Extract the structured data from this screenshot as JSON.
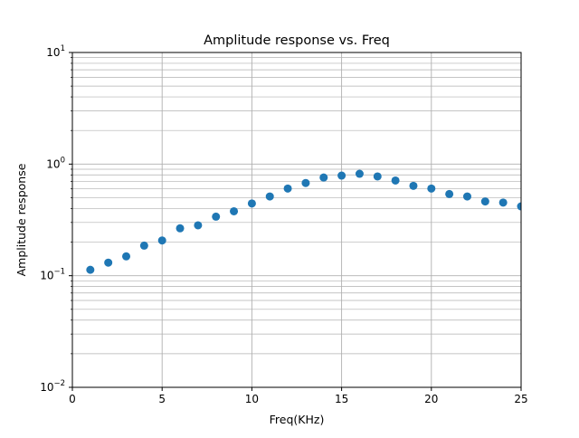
{
  "chart_data": {
    "type": "scatter",
    "title": "Amplitude response vs. Freq",
    "xlabel": "Freq(KHz)",
    "ylabel": "Amplitude response",
    "xlim": [
      0,
      25
    ],
    "ylim": [
      0.01,
      10
    ],
    "yscale": "log",
    "grid": "on (major and minor)",
    "colors": {
      "marker": "#1f77b4",
      "grid": "#b0b0b0",
      "axes": "#000000"
    },
    "x_ticks": [
      {
        "value": 0,
        "label": "0"
      },
      {
        "value": 5,
        "label": "5"
      },
      {
        "value": 10,
        "label": "10"
      },
      {
        "value": 15,
        "label": "15"
      },
      {
        "value": 20,
        "label": "20"
      },
      {
        "value": 25,
        "label": "25"
      }
    ],
    "y_ticks": [
      {
        "value": 0.01,
        "base": "10",
        "exp": "−2"
      },
      {
        "value": 0.1,
        "base": "10",
        "exp": "−1"
      },
      {
        "value": 1,
        "base": "10",
        "exp": "0"
      },
      {
        "value": 10,
        "base": "10",
        "exp": "1"
      }
    ],
    "series": [
      {
        "x": [
          1,
          2,
          3,
          4,
          5,
          6,
          7,
          8,
          9,
          10,
          11,
          12,
          13,
          14,
          15,
          16,
          17,
          18,
          19,
          20,
          21,
          22,
          23,
          24,
          25
        ],
        "y": [
          0.113,
          0.131,
          0.149,
          0.186,
          0.207,
          0.266,
          0.283,
          0.338,
          0.378,
          0.444,
          0.513,
          0.604,
          0.677,
          0.758,
          0.789,
          0.819,
          0.775,
          0.713,
          0.639,
          0.604,
          0.539,
          0.513,
          0.463,
          0.452,
          0.418
        ]
      }
    ]
  }
}
